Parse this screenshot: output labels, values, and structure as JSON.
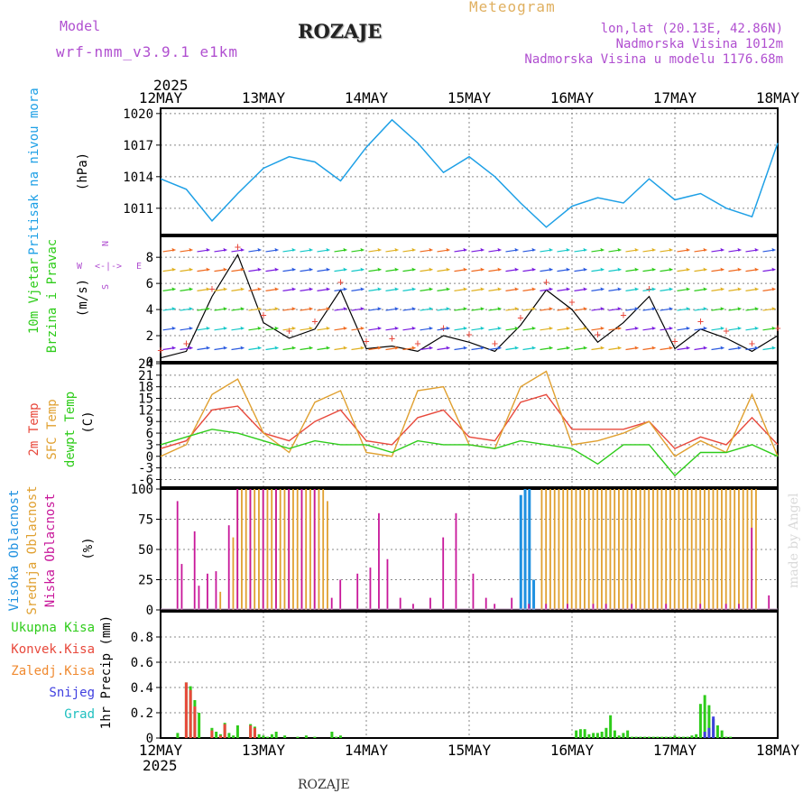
{
  "header": {
    "model_label": "Model",
    "model_name": "wrf-nmm_v3.9.1 e1km",
    "station": "ROZAJE",
    "product": "Meteogram",
    "coords": "lon,lat (20.13E, 42.86N)",
    "altitude": "Nadmorska Visina 1012m",
    "model_altitude": "Nadmorska Visina u modelu 1176.68m"
  },
  "footer": {
    "station": "ROZAJE",
    "credit": "made by Angel"
  },
  "colors": {
    "pressure": "#1ea0e6",
    "temp2m": "#e8493c",
    "sfc": "#e0a030",
    "dew": "#2ecc1a",
    "high_cloud": "#1e90e0",
    "mid_cloud": "#e0a030",
    "low_cloud": "#c8179a",
    "total_precip": "#2ecc1a",
    "conv_precip": "#e8493c",
    "frz_precip": "#f08a30",
    "snow": "#4040e0",
    "hail": "#20c0c0",
    "violet_text": "#b04fd0",
    "title_orange": "#e0b060"
  },
  "time_axis": {
    "year": "2025",
    "labels": [
      "12MAY",
      "13MAY",
      "14MAY",
      "15MAY",
      "16MAY",
      "17MAY",
      "18MAY"
    ]
  },
  "panel_labels": {
    "pressure": [
      "Pritisak na nivou mora",
      "(hPa)"
    ],
    "wind": [
      "10m Vjetar",
      "Brzina i Pravac",
      "(m/s)"
    ],
    "compass": {
      "n": "N",
      "s": "S",
      "e": "E",
      "w": "W",
      "arrows": "<-|->"
    },
    "temp": [
      "2m Temp",
      "SFC Temp",
      "dewpt Temp",
      "(C)"
    ],
    "cloud": [
      "Visoka Oblacnost",
      "Srednja Oblacnost",
      "Niska Oblacnost",
      "(%)"
    ],
    "precip_legend": [
      "Ukupna Kisa",
      "Konvek.Kisa",
      "Zaledj.Kisa",
      "Snijeg",
      "Grad"
    ],
    "precip_axis": "1hr Precip (mm)"
  },
  "chart_data": [
    {
      "type": "line",
      "ylabel": "(hPa)",
      "ylim": [
        1008.5,
        1020.5
      ],
      "yticks": [
        "1011",
        "1014",
        "1017",
        "1020"
      ],
      "x": [
        0,
        6,
        12,
        18,
        24,
        30,
        36,
        42,
        48,
        54,
        60,
        66,
        72,
        78,
        84,
        90,
        96,
        102,
        108,
        114,
        120,
        126,
        132,
        138,
        144
      ],
      "series": [
        {
          "values": [
            1013.8,
            1012.8,
            1009.8,
            1012.4,
            1014.8,
            1015.9,
            1015.4,
            1013.6,
            1016.8,
            1019.4,
            1017.2,
            1014.4,
            1015.9,
            1014.0,
            1011.5,
            1009.2,
            1011.2,
            1012.0,
            1011.5,
            1013.8,
            1011.8,
            1012.4,
            1011.0,
            1010.2,
            1017.2
          ]
        }
      ]
    },
    {
      "type": "line",
      "ylabel": "(m/s)",
      "ylim": [
        0,
        9.6
      ],
      "yticks": [
        "0",
        "2",
        "4",
        "6",
        "8"
      ],
      "x": [
        0,
        6,
        12,
        18,
        24,
        30,
        36,
        42,
        48,
        54,
        60,
        66,
        72,
        78,
        84,
        90,
        96,
        102,
        108,
        114,
        120,
        126,
        132,
        138,
        144
      ],
      "series": [
        {
          "values": [
            0.3,
            0.8,
            5.0,
            8.2,
            3.0,
            1.8,
            2.5,
            5.5,
            1.0,
            1.2,
            0.8,
            2.0,
            1.5,
            0.8,
            2.8,
            5.5,
            4.0,
            1.5,
            3.0,
            5.0,
            1.0,
            2.5,
            1.8,
            0.8,
            2.0
          ]
        }
      ]
    },
    {
      "type": "line",
      "ylabel": "(C)",
      "ylim": [
        -8,
        24
      ],
      "yticks": [
        "-6",
        "-3",
        "0",
        "3",
        "6",
        "9",
        "12",
        "15",
        "18",
        "21",
        "24"
      ],
      "x": [
        0,
        6,
        12,
        18,
        24,
        30,
        36,
        42,
        48,
        54,
        60,
        66,
        72,
        78,
        84,
        90,
        96,
        102,
        108,
        114,
        120,
        126,
        132,
        138,
        144
      ],
      "series": [
        {
          "name": "2m Temp",
          "values": [
            2,
            4,
            12,
            13,
            6,
            4,
            9,
            12,
            4,
            3,
            10,
            12,
            5,
            4,
            14,
            16,
            7,
            7,
            7,
            9,
            2,
            5,
            3,
            10,
            3
          ]
        },
        {
          "name": "SFC Temp",
          "values": [
            0,
            3,
            16,
            20,
            6,
            1,
            14,
            17,
            1,
            0,
            17,
            18,
            3,
            2,
            18,
            22,
            3,
            4,
            6,
            9,
            0,
            4,
            1,
            16,
            0
          ]
        },
        {
          "name": "dewpt Temp",
          "values": [
            3,
            5,
            7,
            6,
            4,
            2,
            4,
            3,
            3,
            1,
            4,
            3,
            3,
            2,
            4,
            3,
            2,
            -2,
            3,
            3,
            -5,
            1,
            1,
            3,
            0
          ]
        }
      ]
    },
    {
      "type": "bar",
      "ylabel": "(%)",
      "ylim": [
        0,
        100
      ],
      "yticks": [
        "0",
        "25",
        "50",
        "75",
        "100"
      ],
      "series": [
        {
          "name": "Visoka Oblacnost",
          "x": [
            84,
            85,
            86,
            87,
            88
          ],
          "values": [
            95,
            100,
            100,
            25,
            0
          ]
        },
        {
          "name": "Srednja Oblacnost",
          "x": [
            14,
            17,
            18,
            19,
            20,
            21,
            22,
            23,
            24,
            25,
            26,
            27,
            28,
            29,
            30,
            31,
            32,
            33,
            34,
            35,
            36,
            37,
            38,
            39,
            89,
            90,
            91,
            92,
            93,
            94,
            95,
            96,
            97,
            98,
            99,
            100,
            101,
            102,
            103,
            104,
            105,
            106,
            107,
            108,
            109,
            110,
            111,
            112,
            113,
            114,
            115,
            116,
            117,
            118,
            119,
            120,
            121,
            122,
            123,
            124,
            125,
            126,
            127,
            128,
            129,
            130,
            131,
            132,
            133,
            134,
            135,
            136,
            137,
            138,
            139
          ],
          "values": [
            15,
            60,
            100,
            100,
            100,
            100,
            100,
            100,
            100,
            100,
            100,
            100,
            100,
            100,
            100,
            100,
            100,
            100,
            100,
            100,
            100,
            100,
            100,
            90,
            100,
            100,
            100,
            100,
            100,
            100,
            100,
            100,
            100,
            100,
            100,
            100,
            100,
            100,
            100,
            100,
            100,
            100,
            100,
            100,
            100,
            100,
            100,
            100,
            100,
            100,
            100,
            100,
            100,
            100,
            100,
            100,
            100,
            100,
            100,
            100,
            100,
            100,
            100,
            100,
            100,
            100,
            100,
            100,
            100,
            100,
            100,
            100,
            100,
            100,
            100
          ]
        },
        {
          "name": "Niska Oblacnost",
          "x": [
            4,
            5,
            8,
            9,
            11,
            13,
            16,
            18,
            21,
            24,
            27,
            30,
            33,
            36,
            40,
            42,
            46,
            49,
            51,
            53,
            56,
            59,
            63,
            66,
            69,
            73,
            76,
            78,
            82,
            86,
            90,
            95,
            101,
            104,
            110,
            118,
            126,
            132,
            135,
            138,
            142
          ],
          "values": [
            90,
            38,
            65,
            20,
            30,
            32,
            70,
            100,
            100,
            100,
            100,
            100,
            100,
            100,
            10,
            25,
            30,
            35,
            80,
            42,
            10,
            5,
            10,
            60,
            80,
            30,
            10,
            5,
            10,
            5,
            5,
            5,
            5,
            5,
            5,
            5,
            5,
            5,
            5,
            68,
            12
          ]
        }
      ]
    },
    {
      "type": "bar",
      "ylabel": "1hr Precip (mm)",
      "ylim": [
        0,
        1.0
      ],
      "yticks": [
        "0",
        "0.2",
        "0.4",
        "0.6",
        "0.8"
      ],
      "series": [
        {
          "name": "Ukupna Kisa",
          "x": [
            4,
            6,
            7,
            8,
            9,
            12,
            13,
            14,
            15,
            16,
            17,
            18,
            21,
            22,
            23,
            24,
            25,
            26,
            27,
            29,
            32,
            34,
            36,
            40,
            41,
            42,
            97,
            98,
            99,
            100,
            101,
            102,
            103,
            104,
            105,
            106,
            107,
            108,
            109,
            110,
            111,
            112,
            113,
            114,
            115,
            116,
            117,
            118,
            119,
            120,
            121,
            122,
            123,
            124,
            125,
            126,
            127,
            128,
            129,
            130,
            131,
            132,
            133
          ],
          "values": [
            0.04,
            0.44,
            0.41,
            0.3,
            0.2,
            0.08,
            0.05,
            0.03,
            0.12,
            0.04,
            0.02,
            0.1,
            0.11,
            0.09,
            0.03,
            0.02,
            0.01,
            0.03,
            0.05,
            0.02,
            0.01,
            0.02,
            0.01,
            0.05,
            0.01,
            0.02,
            0.06,
            0.07,
            0.07,
            0.03,
            0.04,
            0.04,
            0.05,
            0.08,
            0.18,
            0.06,
            0.02,
            0.04,
            0.06,
            0.01,
            0.01,
            0.01,
            0.01,
            0.01,
            0.01,
            0.01,
            0.01,
            0.01,
            0.01,
            0.02,
            0.01,
            0.01,
            0.01,
            0.02,
            0.03,
            0.27,
            0.34,
            0.26,
            0.15,
            0.1,
            0.06,
            0.01,
            0.01
          ]
        },
        {
          "name": "Konvek.Kisa",
          "x": [
            6,
            7,
            8,
            12,
            14,
            15,
            21,
            22
          ],
          "values": [
            0.44,
            0.38,
            0.25,
            0.06,
            0.02,
            0.11,
            0.1,
            0.08
          ]
        },
        {
          "name": "Snijeg",
          "x": [
            127,
            128,
            129
          ],
          "values": [
            0.05,
            0.08,
            0.17
          ]
        }
      ]
    }
  ]
}
